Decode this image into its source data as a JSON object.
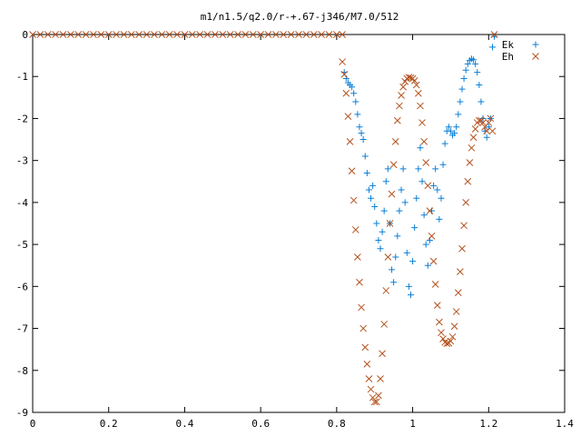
{
  "chart_data": {
    "type": "scatter",
    "title": "m1/n1.5/q2.0/r-+.67-j346/M7.0/512",
    "xlabel": "",
    "ylabel": "",
    "xlim": [
      0,
      1.4
    ],
    "ylim": [
      -9,
      0
    ],
    "x_ticks": [
      0,
      0.2,
      0.4,
      0.6,
      0.8,
      1,
      1.2,
      1.4
    ],
    "x_tick_labels": [
      "0",
      "0.2",
      "0.4",
      "0.6",
      "0.8",
      "1",
      "1.2",
      "1.4"
    ],
    "y_ticks": [
      0,
      -1,
      -2,
      -3,
      -4,
      -5,
      -6,
      -7,
      -8,
      -9
    ],
    "y_tick_labels": [
      "0",
      "-1",
      "-2",
      "-3",
      "-4",
      "-5",
      "-6",
      "-7",
      "-8",
      "-9"
    ],
    "grid": false,
    "legend_position": "top-right",
    "series": [
      {
        "name": "Ek",
        "marker": "plus",
        "color": "#0a7fd8",
        "points": [
          [
            0.82,
            -0.9
          ],
          [
            0.825,
            -1.05
          ],
          [
            0.83,
            -1.15
          ],
          [
            0.835,
            -1.2
          ],
          [
            0.84,
            -1.25
          ],
          [
            0.845,
            -1.4
          ],
          [
            0.85,
            -1.6
          ],
          [
            0.855,
            -1.9
          ],
          [
            0.86,
            -2.2
          ],
          [
            0.865,
            -2.35
          ],
          [
            0.87,
            -2.5
          ],
          [
            0.875,
            -2.9
          ],
          [
            0.88,
            -3.3
          ],
          [
            0.885,
            -3.7
          ],
          [
            0.89,
            -3.9
          ],
          [
            0.895,
            -3.6
          ],
          [
            0.9,
            -4.1
          ],
          [
            0.905,
            -4.5
          ],
          [
            0.91,
            -4.9
          ],
          [
            0.915,
            -5.1
          ],
          [
            0.92,
            -4.7
          ],
          [
            0.925,
            -4.2
          ],
          [
            0.93,
            -3.5
          ],
          [
            0.935,
            -3.2
          ],
          [
            0.94,
            -4.5
          ],
          [
            0.945,
            -5.6
          ],
          [
            0.95,
            -5.9
          ],
          [
            0.955,
            -5.3
          ],
          [
            0.96,
            -4.8
          ],
          [
            0.965,
            -4.2
          ],
          [
            0.97,
            -3.7
          ],
          [
            0.975,
            -3.2
          ],
          [
            0.98,
            -4.0
          ],
          [
            0.985,
            -5.2
          ],
          [
            0.99,
            -6.0
          ],
          [
            0.995,
            -6.2
          ],
          [
            1.0,
            -5.4
          ],
          [
            1.005,
            -4.6
          ],
          [
            1.01,
            -3.9
          ],
          [
            1.015,
            -3.2
          ],
          [
            1.02,
            -2.7
          ],
          [
            1.025,
            -3.5
          ],
          [
            1.03,
            -4.3
          ],
          [
            1.035,
            -5.0
          ],
          [
            1.04,
            -5.5
          ],
          [
            1.045,
            -4.9
          ],
          [
            1.05,
            -4.2
          ],
          [
            1.055,
            -3.6
          ],
          [
            1.06,
            -3.2
          ],
          [
            1.065,
            -3.7
          ],
          [
            1.07,
            -4.4
          ],
          [
            1.075,
            -3.9
          ],
          [
            1.08,
            -3.1
          ],
          [
            1.085,
            -2.6
          ],
          [
            1.09,
            -2.3
          ],
          [
            1.095,
            -2.2
          ],
          [
            1.1,
            -2.3
          ],
          [
            1.105,
            -2.4
          ],
          [
            1.11,
            -2.35
          ],
          [
            1.115,
            -2.2
          ],
          [
            1.12,
            -1.9
          ],
          [
            1.125,
            -1.6
          ],
          [
            1.13,
            -1.3
          ],
          [
            1.135,
            -1.05
          ],
          [
            1.14,
            -0.85
          ],
          [
            1.145,
            -0.7
          ],
          [
            1.15,
            -0.62
          ],
          [
            1.155,
            -0.58
          ],
          [
            1.16,
            -0.6
          ],
          [
            1.165,
            -0.7
          ],
          [
            1.17,
            -0.9
          ],
          [
            1.175,
            -1.2
          ],
          [
            1.18,
            -1.6
          ],
          [
            1.185,
            -2.0
          ],
          [
            1.19,
            -2.3
          ],
          [
            1.195,
            -2.45
          ],
          [
            1.2,
            -2.2
          ],
          [
            1.205,
            -2.0
          ],
          [
            1.21,
            -0.3
          ],
          [
            1.215,
            -0.05
          ]
        ]
      },
      {
        "name": "Eh",
        "marker": "cross",
        "color": "#b4521e",
        "points": [
          [
            0.0,
            0.0
          ],
          [
            0.02,
            0.0
          ],
          [
            0.04,
            0.0
          ],
          [
            0.06,
            0.0
          ],
          [
            0.08,
            0.0
          ],
          [
            0.1,
            0.0
          ],
          [
            0.12,
            0.0
          ],
          [
            0.14,
            0.0
          ],
          [
            0.16,
            0.0
          ],
          [
            0.18,
            0.0
          ],
          [
            0.2,
            0.0
          ],
          [
            0.22,
            0.0
          ],
          [
            0.24,
            0.0
          ],
          [
            0.26,
            0.0
          ],
          [
            0.28,
            0.0
          ],
          [
            0.3,
            0.0
          ],
          [
            0.32,
            0.0
          ],
          [
            0.34,
            0.0
          ],
          [
            0.36,
            0.0
          ],
          [
            0.38,
            0.0
          ],
          [
            0.4,
            0.0
          ],
          [
            0.42,
            0.0
          ],
          [
            0.44,
            0.0
          ],
          [
            0.46,
            0.0
          ],
          [
            0.48,
            0.0
          ],
          [
            0.5,
            0.0
          ],
          [
            0.52,
            0.0
          ],
          [
            0.54,
            0.0
          ],
          [
            0.56,
            0.0
          ],
          [
            0.58,
            0.0
          ],
          [
            0.6,
            0.0
          ],
          [
            0.62,
            0.0
          ],
          [
            0.64,
            0.0
          ],
          [
            0.66,
            0.0
          ],
          [
            0.68,
            0.0
          ],
          [
            0.7,
            0.0
          ],
          [
            0.72,
            0.0
          ],
          [
            0.74,
            0.0
          ],
          [
            0.76,
            0.0
          ],
          [
            0.78,
            0.0
          ],
          [
            0.8,
            0.0
          ],
          [
            0.815,
            0.0
          ],
          [
            0.815,
            -0.65
          ],
          [
            0.82,
            -0.95
          ],
          [
            0.825,
            -1.4
          ],
          [
            0.83,
            -1.95
          ],
          [
            0.835,
            -2.55
          ],
          [
            0.84,
            -3.25
          ],
          [
            0.845,
            -3.95
          ],
          [
            0.85,
            -4.65
          ],
          [
            0.855,
            -5.3
          ],
          [
            0.86,
            -5.9
          ],
          [
            0.865,
            -6.5
          ],
          [
            0.87,
            -7.0
          ],
          [
            0.875,
            -7.45
          ],
          [
            0.88,
            -7.85
          ],
          [
            0.885,
            -8.2
          ],
          [
            0.89,
            -8.45
          ],
          [
            0.895,
            -8.65
          ],
          [
            0.9,
            -8.75
          ],
          [
            0.905,
            -8.75
          ],
          [
            0.91,
            -8.6
          ],
          [
            0.915,
            -8.2
          ],
          [
            0.92,
            -7.6
          ],
          [
            0.925,
            -6.9
          ],
          [
            0.93,
            -6.1
          ],
          [
            0.935,
            -5.3
          ],
          [
            0.94,
            -4.5
          ],
          [
            0.945,
            -3.8
          ],
          [
            0.95,
            -3.1
          ],
          [
            0.955,
            -2.55
          ],
          [
            0.96,
            -2.05
          ],
          [
            0.965,
            -1.7
          ],
          [
            0.97,
            -1.45
          ],
          [
            0.975,
            -1.25
          ],
          [
            0.98,
            -1.12
          ],
          [
            0.985,
            -1.05
          ],
          [
            0.99,
            -1.02
          ],
          [
            0.995,
            -1.03
          ],
          [
            1.0,
            -1.05
          ],
          [
            1.005,
            -1.1
          ],
          [
            1.01,
            -1.2
          ],
          [
            1.015,
            -1.4
          ],
          [
            1.02,
            -1.7
          ],
          [
            1.025,
            -2.1
          ],
          [
            1.03,
            -2.55
          ],
          [
            1.035,
            -3.05
          ],
          [
            1.04,
            -3.6
          ],
          [
            1.045,
            -4.2
          ],
          [
            1.05,
            -4.8
          ],
          [
            1.055,
            -5.4
          ],
          [
            1.06,
            -5.95
          ],
          [
            1.065,
            -6.45
          ],
          [
            1.07,
            -6.85
          ],
          [
            1.075,
            -7.1
          ],
          [
            1.08,
            -7.25
          ],
          [
            1.085,
            -7.33
          ],
          [
            1.09,
            -7.36
          ],
          [
            1.095,
            -7.35
          ],
          [
            1.1,
            -7.3
          ],
          [
            1.105,
            -7.2
          ],
          [
            1.11,
            -6.95
          ],
          [
            1.115,
            -6.6
          ],
          [
            1.12,
            -6.15
          ],
          [
            1.125,
            -5.65
          ],
          [
            1.13,
            -5.1
          ],
          [
            1.135,
            -4.55
          ],
          [
            1.14,
            -4.0
          ],
          [
            1.145,
            -3.5
          ],
          [
            1.15,
            -3.05
          ],
          [
            1.155,
            -2.7
          ],
          [
            1.16,
            -2.45
          ],
          [
            1.165,
            -2.25
          ],
          [
            1.17,
            -2.1
          ],
          [
            1.175,
            -2.05
          ],
          [
            1.18,
            -2.05
          ],
          [
            1.185,
            -2.1
          ],
          [
            1.19,
            -2.2
          ],
          [
            1.195,
            -2.3
          ],
          [
            1.2,
            -2.1
          ],
          [
            1.205,
            -2.0
          ],
          [
            1.21,
            -2.3
          ],
          [
            1.215,
            0.0
          ]
        ]
      }
    ]
  }
}
